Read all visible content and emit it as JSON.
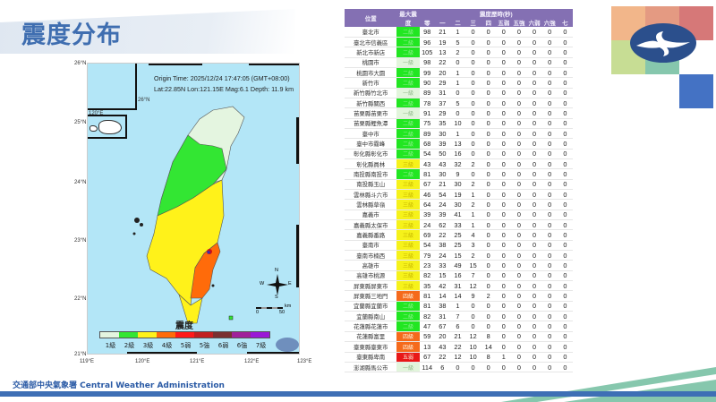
{
  "page": {
    "title": "震度分布",
    "footer": "交通部中央氣象署 Central Weather Administration",
    "colors": {
      "title": "#3f6eb0",
      "header": "#8470b3",
      "footer_bar": "#3e6fb5",
      "stripe": "#86c7ad"
    }
  },
  "map": {
    "origin_time": "Origin Time: 2025/12/24   17:47:05   (GMT+08:00)",
    "location": "Lat:22.85N  Lon:121.15E  Mag:6.1  Depth: 11.9 km",
    "lat_ticks": [
      "26°N",
      "25°N",
      "24°N",
      "23°N",
      "22°N",
      "21°N"
    ],
    "lon_ticks": [
      "119°E",
      "120°E",
      "121°E",
      "122°E",
      "123°E"
    ],
    "inset_labels": {
      "lat": "26°N",
      "lon": "120°E"
    },
    "compass": {
      "n": "N",
      "s": "S",
      "e": "E",
      "w": "W"
    },
    "scale": {
      "zero": "0",
      "fifty": "50",
      "unit": "km"
    },
    "legend_title": "震度",
    "legend": [
      {
        "label": "1級",
        "color": "#e4f5e0"
      },
      {
        "label": "2級",
        "color": "#33e633"
      },
      {
        "label": "3級",
        "color": "#fff21a"
      },
      {
        "label": "4級",
        "color": "#ff6b0a"
      },
      {
        "label": "5弱",
        "color": "#ff1a1a"
      },
      {
        "label": "5強",
        "color": "#c22020"
      },
      {
        "label": "6弱",
        "color": "#7a3030"
      },
      {
        "label": "6強",
        "color": "#a0209a"
      },
      {
        "label": "7級",
        "color": "#9a1ad6"
      }
    ]
  },
  "table": {
    "headers": {
      "location": "位置",
      "max_intensity": "最大震度",
      "duration": "震度歷時(秒)",
      "levels": [
        "零",
        "一",
        "二",
        "三",
        "四",
        "五弱",
        "五強",
        "六弱",
        "六強",
        "七"
      ]
    },
    "rows": [
      {
        "loc": "臺北市",
        "int": "二級",
        "c": "#22e622",
        "v": [
          98,
          21,
          1,
          0,
          0,
          0,
          0,
          0,
          0,
          0
        ]
      },
      {
        "loc": "臺北市信義區",
        "int": "二級",
        "c": "#22e622",
        "v": [
          96,
          19,
          5,
          0,
          0,
          0,
          0,
          0,
          0,
          0
        ]
      },
      {
        "loc": "新北市新店",
        "int": "二級",
        "c": "#22e622",
        "v": [
          105,
          13,
          2,
          0,
          0,
          0,
          0,
          0,
          0,
          0
        ]
      },
      {
        "loc": "桃園市",
        "int": "一級",
        "c": "#e2f5dc",
        "v": [
          98,
          22,
          0,
          0,
          0,
          0,
          0,
          0,
          0,
          0
        ]
      },
      {
        "loc": "桃園市大園",
        "int": "二級",
        "c": "#22e622",
        "v": [
          99,
          20,
          1,
          0,
          0,
          0,
          0,
          0,
          0,
          0
        ]
      },
      {
        "loc": "新竹市",
        "int": "二級",
        "c": "#22e622",
        "v": [
          90,
          29,
          1,
          0,
          0,
          0,
          0,
          0,
          0,
          0
        ]
      },
      {
        "loc": "新竹縣竹北市",
        "int": "一級",
        "c": "#e2f5dc",
        "v": [
          89,
          31,
          0,
          0,
          0,
          0,
          0,
          0,
          0,
          0
        ]
      },
      {
        "loc": "新竹縣關西",
        "int": "二級",
        "c": "#22e622",
        "v": [
          78,
          37,
          5,
          0,
          0,
          0,
          0,
          0,
          0,
          0
        ]
      },
      {
        "loc": "苗栗縣苗栗市",
        "int": "一級",
        "c": "#e2f5dc",
        "v": [
          91,
          29,
          0,
          0,
          0,
          0,
          0,
          0,
          0,
          0
        ]
      },
      {
        "loc": "苗栗縣鯉魚潭",
        "int": "二級",
        "c": "#22e622",
        "v": [
          75,
          35,
          10,
          0,
          0,
          0,
          0,
          0,
          0,
          0
        ]
      },
      {
        "loc": "臺中市",
        "int": "二級",
        "c": "#22e622",
        "v": [
          89,
          30,
          1,
          0,
          0,
          0,
          0,
          0,
          0,
          0
        ]
      },
      {
        "loc": "臺中市霧峰",
        "int": "二級",
        "c": "#22e622",
        "v": [
          68,
          39,
          13,
          0,
          0,
          0,
          0,
          0,
          0,
          0
        ]
      },
      {
        "loc": "彰化縣彰化市",
        "int": "二級",
        "c": "#22e622",
        "v": [
          54,
          50,
          16,
          0,
          0,
          0,
          0,
          0,
          0,
          0
        ]
      },
      {
        "loc": "彰化縣員林",
        "int": "三級",
        "c": "#f6f21a",
        "v": [
          43,
          43,
          32,
          2,
          0,
          0,
          0,
          0,
          0,
          0
        ]
      },
      {
        "loc": "南投縣南投市",
        "int": "二級",
        "c": "#22e622",
        "v": [
          81,
          30,
          9,
          0,
          0,
          0,
          0,
          0,
          0,
          0
        ]
      },
      {
        "loc": "南投縣玉山",
        "int": "三級",
        "c": "#f6f21a",
        "v": [
          67,
          21,
          30,
          2,
          0,
          0,
          0,
          0,
          0,
          0
        ]
      },
      {
        "loc": "雲林縣斗六市",
        "int": "三級",
        "c": "#f6f21a",
        "v": [
          46,
          54,
          19,
          1,
          0,
          0,
          0,
          0,
          0,
          0
        ]
      },
      {
        "loc": "雲林縣草嶺",
        "int": "三級",
        "c": "#f6f21a",
        "v": [
          64,
          24,
          30,
          2,
          0,
          0,
          0,
          0,
          0,
          0
        ]
      },
      {
        "loc": "嘉義市",
        "int": "三級",
        "c": "#f6f21a",
        "v": [
          39,
          39,
          41,
          1,
          0,
          0,
          0,
          0,
          0,
          0
        ]
      },
      {
        "loc": "嘉義縣太保市",
        "int": "三級",
        "c": "#f6f21a",
        "v": [
          24,
          62,
          33,
          1,
          0,
          0,
          0,
          0,
          0,
          0
        ]
      },
      {
        "loc": "嘉義縣番路",
        "int": "三級",
        "c": "#f6f21a",
        "v": [
          69,
          22,
          25,
          4,
          0,
          0,
          0,
          0,
          0,
          0
        ]
      },
      {
        "loc": "臺南市",
        "int": "三級",
        "c": "#f6f21a",
        "v": [
          54,
          38,
          25,
          3,
          0,
          0,
          0,
          0,
          0,
          0
        ]
      },
      {
        "loc": "臺南市楠西",
        "int": "三級",
        "c": "#f6f21a",
        "v": [
          79,
          24,
          15,
          2,
          0,
          0,
          0,
          0,
          0,
          0
        ]
      },
      {
        "loc": "高雄市",
        "int": "三級",
        "c": "#f6f21a",
        "v": [
          23,
          33,
          49,
          15,
          0,
          0,
          0,
          0,
          0,
          0
        ]
      },
      {
        "loc": "高雄市桃源",
        "int": "三級",
        "c": "#f6f21a",
        "v": [
          82,
          15,
          16,
          7,
          0,
          0,
          0,
          0,
          0,
          0
        ]
      },
      {
        "loc": "屏東縣屏東市",
        "int": "三級",
        "c": "#f6f21a",
        "v": [
          35,
          42,
          31,
          12,
          0,
          0,
          0,
          0,
          0,
          0
        ]
      },
      {
        "loc": "屏東縣三地門",
        "int": "四級",
        "c": "#f56a1c",
        "v": [
          81,
          14,
          14,
          9,
          2,
          0,
          0,
          0,
          0,
          0
        ]
      },
      {
        "loc": "宜蘭縣宜蘭市",
        "int": "二級",
        "c": "#22e622",
        "v": [
          81,
          38,
          1,
          0,
          0,
          0,
          0,
          0,
          0,
          0
        ]
      },
      {
        "loc": "宜蘭縣南山",
        "int": "二級",
        "c": "#22e622",
        "v": [
          82,
          31,
          7,
          0,
          0,
          0,
          0,
          0,
          0,
          0
        ]
      },
      {
        "loc": "花蓮縣花蓮市",
        "int": "二級",
        "c": "#22e622",
        "v": [
          47,
          67,
          6,
          0,
          0,
          0,
          0,
          0,
          0,
          0
        ]
      },
      {
        "loc": "花蓮縣富里",
        "int": "四級",
        "c": "#f56a1c",
        "v": [
          59,
          20,
          21,
          12,
          8,
          0,
          0,
          0,
          0,
          0
        ]
      },
      {
        "loc": "臺東縣臺東市",
        "int": "四級",
        "c": "#f56a1c",
        "v": [
          13,
          43,
          22,
          10,
          14,
          0,
          0,
          0,
          0,
          0
        ]
      },
      {
        "loc": "臺東縣卑南",
        "int": "五弱",
        "c": "#e81818",
        "v": [
          67,
          22,
          12,
          10,
          8,
          1,
          0,
          0,
          0,
          0
        ]
      },
      {
        "loc": "澎湖縣馬公市",
        "int": "一級",
        "c": "#e2f5dc",
        "v": [
          114,
          6,
          0,
          0,
          0,
          0,
          0,
          0,
          0,
          0
        ]
      }
    ]
  }
}
